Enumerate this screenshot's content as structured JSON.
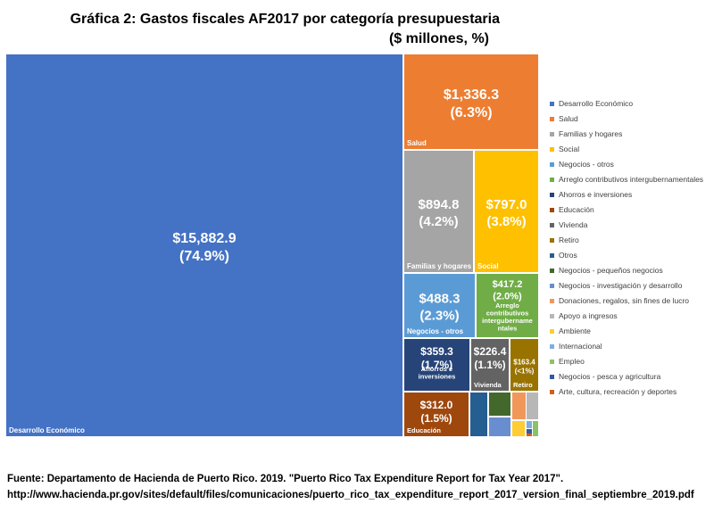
{
  "chart_data": {
    "type": "treemap",
    "title": "Gráfica 2: Gastos fiscales AF2017 por categoría presupuestaria",
    "subtitle": "($ millones, %)",
    "legend_position": "right",
    "series": [
      {
        "name": "Desarrollo Económico",
        "value": 15882.9,
        "value_label": "$15,882.9",
        "pct_label": "(74.9%)",
        "color": "#4472C4"
      },
      {
        "name": "Salud",
        "value": 1336.3,
        "value_label": "$1,336.3",
        "pct_label": "(6.3%)",
        "color": "#ED7D31"
      },
      {
        "name": "Familias y hogares",
        "value": 894.8,
        "value_label": "$894.8",
        "pct_label": "(4.2%)",
        "color": "#A5A5A5"
      },
      {
        "name": "Social",
        "value": 797.0,
        "value_label": "$797.0",
        "pct_label": "(3.8%)",
        "color": "#FFC000"
      },
      {
        "name": "Negocios - otros",
        "value": 488.3,
        "value_label": "$488.3",
        "pct_label": "(2.3%)",
        "color": "#5B9BD5"
      },
      {
        "name": "Arreglo contributivos intergubernamentales",
        "value": 417.2,
        "value_label": "$417.2",
        "pct_label": "(2.0%)",
        "color": "#70AD47"
      },
      {
        "name": "Ahorros e inversiones",
        "value": 359.3,
        "value_label": "$359.3",
        "pct_label": "(1.7%)",
        "color": "#264478"
      },
      {
        "name": "Educación",
        "value": 312.0,
        "value_label": "$312.0",
        "pct_label": "(1.5%)",
        "color": "#9E480E"
      },
      {
        "name": "Vivienda",
        "value": 226.4,
        "value_label": "$226.4",
        "pct_label": "(1.1%)",
        "color": "#636363"
      },
      {
        "name": "Retiro",
        "value": 163.4,
        "value_label": "$163.4",
        "pct_label": "(<1%)",
        "color": "#997300"
      },
      {
        "name": "Otros",
        "color": "#255E91"
      },
      {
        "name": "Negocios - pequeños negocios",
        "color": "#43682B"
      },
      {
        "name": "Negocios - investigación y desarrollo",
        "color": "#698ED0"
      },
      {
        "name": "Donaciones, regalos, sin fines de lucro",
        "color": "#F1975A"
      },
      {
        "name": "Apoyo a ingresos",
        "color": "#B7B7B7"
      },
      {
        "name": "Ambiente",
        "color": "#FFCD33"
      },
      {
        "name": "Internacional",
        "color": "#7CAFDD"
      },
      {
        "name": "Empleo",
        "color": "#8CC168"
      },
      {
        "name": "Negocios - pesca y agricultura",
        "color": "#335AA1"
      },
      {
        "name": "Arte, cultura, recreación y deportes",
        "color": "#D26012"
      }
    ],
    "cell_labels": {
      "Desarrollo Económico": [
        "Desarrollo Económico"
      ],
      "Salud": [
        "Salud"
      ],
      "Familias y hogares": [
        "Familias y hogares"
      ],
      "Social": [
        "Social"
      ],
      "Negocios - otros": [
        "Negocios - otros"
      ],
      "Arreglo contributivos intergubernamentales": [
        "Arreglo",
        "contributivos",
        "intergubername",
        "ntales"
      ],
      "Ahorros e inversiones": [
        "Ahorros e",
        "inversiones"
      ],
      "Educación": [
        "Educación"
      ],
      "Vivienda": [
        "Vivienda"
      ],
      "Retiro": [
        "Retiro"
      ]
    }
  },
  "source": {
    "line1": "Fuente: Departamento de Hacienda de Puerto Rico. 2019. \"Puerto Rico Tax Expenditure Report for Tax Year 2017\".",
    "line2": "http://www.hacienda.pr.gov/sites/default/files/comunicaciones/puerto_rico_tax_expenditure_report_2017_version_final_septiembre_2019.pdf"
  }
}
